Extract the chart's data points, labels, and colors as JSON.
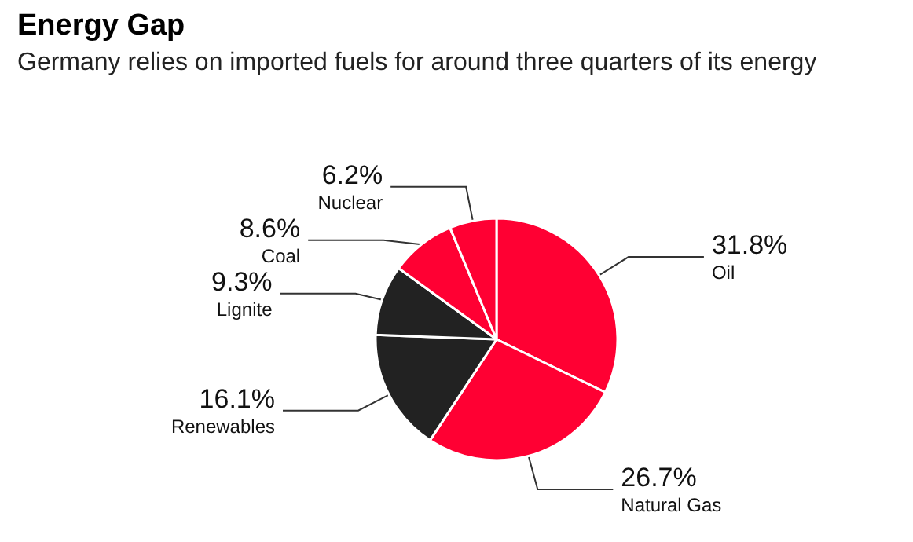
{
  "chart_data": {
    "type": "pie",
    "title": "Energy Gap",
    "subtitle": "Germany relies on imported fuels for around three quarters of its energy",
    "categories": [
      "Oil",
      "Natural Gas",
      "Renewables",
      "Lignite",
      "Coal",
      "Nuclear"
    ],
    "values": [
      31.8,
      26.7,
      16.1,
      9.3,
      8.6,
      6.2
    ],
    "value_labels": [
      "31.8%",
      "26.7%",
      "16.1%",
      "9.3%",
      "8.6%",
      "6.2%"
    ],
    "colors": [
      "#ff0033",
      "#ff0033",
      "#222222",
      "#222222",
      "#ff0033",
      "#ff0033"
    ],
    "legend": false
  }
}
